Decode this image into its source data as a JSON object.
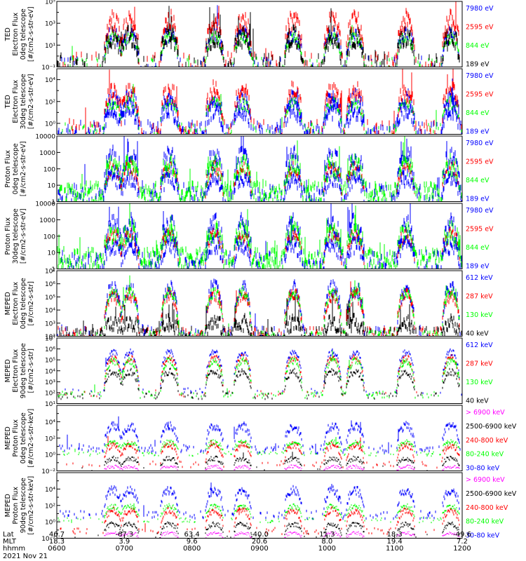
{
  "chart_data": {
    "type": "line",
    "panels": [
      {
        "ylabel_lines": [
          "TED",
          "Electron Flux",
          "0deg telescope",
          "[#/cm2-s-str-eV]"
        ],
        "ytick_labels": [
          "10⁻¹",
          "10¹",
          "10³",
          "10⁵"
        ],
        "log_range": [
          -1,
          5
        ],
        "minor_ticks": [
          0,
          2,
          4
        ],
        "series": [
          {
            "name": "7980 eV",
            "color": "#0000ff",
            "peak_log": 2.2,
            "base_log": -0.6,
            "noise": 0.7,
            "density": 0.18
          },
          {
            "name": "2595 eV",
            "color": "#ff0000",
            "peak_log": 3.5,
            "base_log": -0.4,
            "noise": 0.9,
            "density": 0.3
          },
          {
            "name": "844 eV",
            "color": "#00ff00",
            "peak_log": 1.8,
            "base_log": -0.5,
            "noise": 0.5,
            "density": 0.2
          },
          {
            "name": "189 eV",
            "color": "#000000",
            "peak_log": 2.0,
            "base_log": -0.5,
            "noise": 0.9,
            "density": 0.35
          }
        ]
      },
      {
        "ylabel_lines": [
          "TED",
          "Electron Flux",
          "30deg telescope",
          "[#/cm2-s-str-eV]"
        ],
        "ytick_labels": [
          "10⁰",
          "10²",
          "10⁴"
        ],
        "log_range": [
          -1,
          5
        ],
        "minor_ticks": [
          -1,
          1,
          3,
          5
        ],
        "series": [
          {
            "name": "7980 eV",
            "color": "#0000ff",
            "peak_log": 2.6,
            "base_log": -0.4,
            "noise": 0.7,
            "density": 0.25
          },
          {
            "name": "2595 eV",
            "color": "#ff0000",
            "peak_log": 3.2,
            "base_log": -0.4,
            "noise": 0.9,
            "density": 0.3
          },
          {
            "name": "844 eV",
            "color": "#00ff00",
            "peak_log": 2.0,
            "base_log": -0.4,
            "noise": 0.5,
            "density": 0.2
          },
          {
            "name": "189 eV",
            "color": "#0000ff",
            "peak_log": 1.6,
            "base_log": -0.5,
            "noise": 0.9,
            "density": 0.3
          }
        ]
      },
      {
        "ylabel_lines": [
          "Proton Flux",
          "0deg telescope",
          "[#/cm2-s-str-eV]"
        ],
        "ytick_labels": [
          "1",
          "10",
          "100",
          "1000",
          "10000"
        ],
        "log_range": [
          0,
          4
        ],
        "minor_ticks": [],
        "series": [
          {
            "name": "7980 eV",
            "color": "#0000ff",
            "peak_log": 2.9,
            "base_log": 0.6,
            "noise": 0.6,
            "density": 0.5
          },
          {
            "name": "2595 eV",
            "color": "#ff0000",
            "peak_log": 2.2,
            "base_log": 0.4,
            "noise": 0.4,
            "density": 0.0
          },
          {
            "name": "844 eV",
            "color": "#00ff00",
            "peak_log": 2.4,
            "base_log": 0.7,
            "noise": 0.6,
            "density": 0.8
          },
          {
            "name": "189 eV",
            "color": "#0000ff",
            "peak_log": 1.6,
            "base_log": 0.3,
            "noise": 0.5,
            "density": 0.1
          }
        ]
      },
      {
        "ylabel_lines": [
          "Proton Flux",
          "30deg telescope",
          "[#/cm2-s-str-eV]"
        ],
        "ytick_labels": [
          "1",
          "10",
          "100",
          "1000",
          "10000"
        ],
        "log_range": [
          0,
          4
        ],
        "minor_ticks": [],
        "series": [
          {
            "name": "7980 eV",
            "color": "#0000ff",
            "peak_log": 2.9,
            "base_log": 0.6,
            "noise": 0.6,
            "density": 0.45
          },
          {
            "name": "2595 eV",
            "color": "#ff0000",
            "peak_log": 2.2,
            "base_log": 0.4,
            "noise": 0.4,
            "density": 0.0
          },
          {
            "name": "844 eV",
            "color": "#00ff00",
            "peak_log": 2.4,
            "base_log": 0.8,
            "noise": 0.6,
            "density": 0.8
          },
          {
            "name": "189 eV",
            "color": "#0000ff",
            "peak_log": 1.6,
            "base_log": 0.3,
            "noise": 0.5,
            "density": 0.1
          }
        ]
      },
      {
        "ylabel_lines": [
          "MEPED",
          "Electron Flux",
          "0deg telescope",
          "[#/cm2-s-str]"
        ],
        "ytick_labels": [
          "10²",
          "10³",
          "10⁴",
          "10⁵",
          "10⁶",
          "10⁷"
        ],
        "log_range": [
          2,
          7
        ],
        "minor_ticks": [],
        "series": [
          {
            "name": "612 keV",
            "color": "#0000ff",
            "peak_log": 5.8,
            "base_log": 2.4,
            "noise": 0.6,
            "density": 0.25
          },
          {
            "name": "287 keV",
            "color": "#ff0000",
            "peak_log": 5.3,
            "base_log": 2.3,
            "noise": 0.5,
            "density": 0.4
          },
          {
            "name": "130 keV",
            "color": "#00ff00",
            "peak_log": 5.5,
            "base_log": 2.1,
            "noise": 0.4,
            "density": 0.5
          },
          {
            "name": "40 keV",
            "color": "#000000",
            "peak_log": 3.2,
            "base_log": 2.2,
            "noise": 0.6,
            "density": 0.6
          }
        ]
      },
      {
        "ylabel_lines": [
          "MEPED",
          "Electron Flux",
          "90deg telescope",
          "[#/cm2-s-str]"
        ],
        "ytick_labels": [
          "10¹",
          "10²",
          "10³",
          "10⁴",
          "10⁵",
          "10⁶",
          "10⁷"
        ],
        "log_range": [
          1,
          7
        ],
        "minor_ticks": [],
        "series": [
          {
            "name": "612 keV",
            "color": "#0000ff",
            "peak_log": 5.8,
            "base_log": 2.2,
            "noise": 0.3,
            "density": 0.1
          },
          {
            "name": "287 keV",
            "color": "#ff0000",
            "peak_log": 5.3,
            "base_log": 2.0,
            "noise": 0.3,
            "density": 0.1
          },
          {
            "name": "130 keV",
            "color": "#00ff00",
            "peak_log": 5.0,
            "base_log": 1.9,
            "noise": 0.3,
            "density": 0.3
          },
          {
            "name": "40 keV",
            "color": "#000000",
            "peak_log": 4.0,
            "base_log": 1.8,
            "noise": 0.3,
            "density": 0.2
          }
        ]
      },
      {
        "ylabel_lines": [
          "MEPED",
          "Proton Flux",
          "0deg telescope",
          "[#/cm2-s-str-keV]"
        ],
        "ytick_labels": [
          "10⁻²",
          "10⁰",
          "10²",
          "10⁴"
        ],
        "log_range": [
          -2,
          6
        ],
        "minor_ticks": [
          -1,
          1,
          3,
          5
        ],
        "series": [
          {
            "name": "> 6900 keV",
            "color": "#ff00ff",
            "peak_log": -1.4,
            "base_log": -2.0,
            "noise": 0.2,
            "density": 0.0
          },
          {
            "name": "2500-6900 keV",
            "color": "#000000",
            "peak_log": -0.4,
            "base_log": -1.6,
            "noise": 0.3,
            "density": 0.05
          },
          {
            "name": "240-800 keV",
            "color": "#ff0000",
            "peak_log": 1.3,
            "base_log": -1.1,
            "noise": 0.4,
            "density": 0.15
          },
          {
            "name": "80-240 keV",
            "color": "#00ff00",
            "peak_log": 1.6,
            "base_log": 0.2,
            "noise": 0.3,
            "density": 0.2
          },
          {
            "name": "30-80 keV",
            "color": "#0000ff",
            "peak_log": 3.6,
            "base_log": 0.8,
            "noise": 0.5,
            "density": 0.3
          }
        ]
      },
      {
        "ylabel_lines": [
          "MEPED",
          "Proton Flux",
          "90deg telescope",
          "[#/cm2-s-str-keV]"
        ],
        "ytick_labels": [
          "10⁻²",
          "10⁰",
          "10²",
          "10⁴"
        ],
        "log_range": [
          -2,
          6
        ],
        "minor_ticks": [
          -1,
          1,
          3,
          5
        ],
        "series": [
          {
            "name": "> 6900 keV",
            "color": "#ff00ff",
            "peak_log": -1.3,
            "base_log": -2.0,
            "noise": 0.2,
            "density": 0.0
          },
          {
            "name": "2500-6900 keV",
            "color": "#000000",
            "peak_log": -0.2,
            "base_log": -1.6,
            "noise": 0.3,
            "density": 0.05
          },
          {
            "name": "240-800 keV",
            "color": "#ff0000",
            "peak_log": 1.5,
            "base_log": -1.0,
            "noise": 0.4,
            "density": 0.15
          },
          {
            "name": "80-240 keV",
            "color": "#00ff00",
            "peak_log": 2.0,
            "base_log": 0.3,
            "noise": 0.3,
            "density": 0.2
          },
          {
            "name": "30-80 keV",
            "color": "#0000ff",
            "peak_log": 4.0,
            "base_log": 1.0,
            "noise": 0.5,
            "density": 0.3
          }
        ]
      }
    ],
    "x_axis": {
      "time_range": [
        "0600",
        "1200"
      ],
      "row_labels": [
        "Lat",
        "MLT",
        "hhmm"
      ],
      "ticks": [
        {
          "lat": "46.7",
          "mlt": "18.3",
          "hhmm": "0600"
        },
        {
          "lat": "-67.3",
          "mlt": "3.9",
          "hhmm": "0700"
        },
        {
          "lat": "63.4",
          "mlt": "9.6",
          "hhmm": "0800"
        },
        {
          "lat": "-40.0",
          "mlt": "20.6",
          "hhmm": "0900"
        },
        {
          "lat": "11.3",
          "mlt": "8.0",
          "hhmm": "1000"
        },
        {
          "lat": "18.3",
          "mlt": "19.4",
          "hhmm": "1100"
        },
        {
          "lat": "-49.6",
          "mlt": "7.2",
          "hhmm": "1200"
        }
      ],
      "date": "2021 Nov 21"
    },
    "passes_hhmm": [
      "0650",
      "0705",
      "0740",
      "0820",
      "0845",
      "0930",
      "1005",
      "1025",
      "1110",
      "1150"
    ]
  }
}
